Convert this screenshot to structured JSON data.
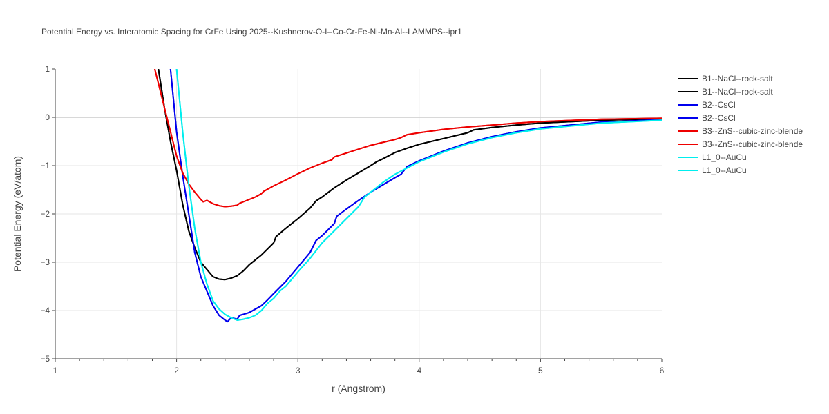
{
  "chart_data": {
    "type": "line",
    "title": "Potential Energy vs. Interatomic Spacing for CrFe Using 2025--Kushnerov-O-I--Co-Cr-Fe-Ni-Mn-Al--LAMMPS--ipr1",
    "xlabel": "r (Angstrom)",
    "ylabel": "Potential Energy (eV/atom)",
    "xlim": [
      1,
      6
    ],
    "ylim": [
      -5,
      1
    ],
    "xticks": [
      1,
      2,
      3,
      4,
      5,
      6
    ],
    "yticks": [
      1,
      0,
      -1,
      -2,
      -3,
      -4,
      -5
    ],
    "ytick_labels": [
      "1",
      "0",
      "−1",
      "−2",
      "−3",
      "−4",
      "−5"
    ],
    "grid": true,
    "legend_position": "right",
    "series": [
      {
        "name": "B1--NaCl--rock-salt",
        "color": "#000000",
        "x": [
          1.85,
          1.9,
          1.95,
          2.0,
          2.05,
          2.1,
          2.15,
          2.2,
          2.25,
          2.3,
          2.35,
          2.4,
          2.45,
          2.5,
          2.55,
          2.6,
          2.7,
          2.8,
          2.82,
          2.9,
          3.0,
          3.1,
          3.15,
          3.2,
          3.3,
          3.4,
          3.5,
          3.6,
          3.65,
          3.7,
          3.8,
          3.9,
          4.0,
          4.2,
          4.4,
          4.45,
          4.6,
          4.8,
          5.0,
          5.5,
          6.0
        ],
        "y": [
          1.0,
          0.2,
          -0.5,
          -1.1,
          -1.8,
          -2.35,
          -2.7,
          -3.0,
          -3.15,
          -3.3,
          -3.35,
          -3.36,
          -3.33,
          -3.28,
          -3.18,
          -3.05,
          -2.85,
          -2.6,
          -2.47,
          -2.3,
          -2.1,
          -1.88,
          -1.73,
          -1.65,
          -1.46,
          -1.3,
          -1.15,
          -1.0,
          -0.92,
          -0.86,
          -0.73,
          -0.64,
          -0.56,
          -0.44,
          -0.32,
          -0.26,
          -0.21,
          -0.16,
          -0.12,
          -0.06,
          -0.03
        ]
      },
      {
        "name": "B1--NaCl--rock-salt",
        "color": "#000000",
        "x": [
          1.85,
          1.9,
          1.95,
          2.0,
          2.05,
          2.1,
          2.15,
          2.2,
          2.25,
          2.3,
          2.35,
          2.4,
          2.45,
          2.5,
          2.55,
          2.6,
          2.7,
          2.8,
          2.82,
          2.9,
          3.0,
          3.1,
          3.15,
          3.2,
          3.3,
          3.4,
          3.5,
          3.6,
          3.65,
          3.7,
          3.8,
          3.9,
          4.0,
          4.2,
          4.4,
          4.45,
          4.6,
          4.8,
          5.0,
          5.5,
          6.0
        ],
        "y": [
          1.0,
          0.2,
          -0.5,
          -1.1,
          -1.8,
          -2.35,
          -2.7,
          -3.0,
          -3.15,
          -3.3,
          -3.35,
          -3.36,
          -3.33,
          -3.28,
          -3.18,
          -3.05,
          -2.85,
          -2.6,
          -2.47,
          -2.3,
          -2.1,
          -1.88,
          -1.73,
          -1.65,
          -1.46,
          -1.3,
          -1.15,
          -1.0,
          -0.92,
          -0.86,
          -0.73,
          -0.64,
          -0.56,
          -0.44,
          -0.32,
          -0.26,
          -0.21,
          -0.16,
          -0.12,
          -0.06,
          -0.03
        ]
      },
      {
        "name": "B2--CsCl",
        "color": "#0000ee",
        "x": [
          1.95,
          2.0,
          2.05,
          2.1,
          2.15,
          2.2,
          2.25,
          2.3,
          2.35,
          2.4,
          2.42,
          2.45,
          2.5,
          2.52,
          2.55,
          2.6,
          2.7,
          2.75,
          2.8,
          2.9,
          3.0,
          3.1,
          3.15,
          3.2,
          3.3,
          3.32,
          3.4,
          3.5,
          3.6,
          3.7,
          3.8,
          3.85,
          3.9,
          4.0,
          4.2,
          4.4,
          4.6,
          4.8,
          5.0,
          5.5,
          6.0
        ],
        "y": [
          1.0,
          -0.3,
          -1.2,
          -2.0,
          -2.8,
          -3.3,
          -3.6,
          -3.9,
          -4.1,
          -4.2,
          -4.23,
          -4.15,
          -4.18,
          -4.1,
          -4.08,
          -4.04,
          -3.9,
          -3.78,
          -3.65,
          -3.4,
          -3.1,
          -2.8,
          -2.55,
          -2.45,
          -2.2,
          -2.05,
          -1.9,
          -1.72,
          -1.55,
          -1.4,
          -1.25,
          -1.18,
          -1.02,
          -0.9,
          -0.7,
          -0.53,
          -0.4,
          -0.3,
          -0.22,
          -0.1,
          -0.05
        ]
      },
      {
        "name": "B2--CsCl",
        "color": "#0000ee",
        "x": [
          1.95,
          2.0,
          2.05,
          2.1,
          2.15,
          2.2,
          2.25,
          2.3,
          2.35,
          2.4,
          2.42,
          2.45,
          2.5,
          2.52,
          2.55,
          2.6,
          2.7,
          2.75,
          2.8,
          2.9,
          3.0,
          3.1,
          3.15,
          3.2,
          3.3,
          3.32,
          3.4,
          3.5,
          3.6,
          3.7,
          3.8,
          3.85,
          3.9,
          4.0,
          4.2,
          4.4,
          4.6,
          4.8,
          5.0,
          5.5,
          6.0
        ],
        "y": [
          1.0,
          -0.3,
          -1.2,
          -2.0,
          -2.8,
          -3.3,
          -3.6,
          -3.9,
          -4.1,
          -4.2,
          -4.23,
          -4.15,
          -4.18,
          -4.1,
          -4.08,
          -4.04,
          -3.9,
          -3.78,
          -3.65,
          -3.4,
          -3.1,
          -2.8,
          -2.55,
          -2.45,
          -2.2,
          -2.05,
          -1.9,
          -1.72,
          -1.55,
          -1.4,
          -1.25,
          -1.18,
          -1.02,
          -0.9,
          -0.7,
          -0.53,
          -0.4,
          -0.3,
          -0.22,
          -0.1,
          -0.05
        ]
      },
      {
        "name": "B3--ZnS--cubic-zinc-blende",
        "color": "#ee0000",
        "x": [
          1.82,
          1.85,
          1.9,
          1.95,
          2.0,
          2.05,
          2.1,
          2.15,
          2.2,
          2.22,
          2.25,
          2.3,
          2.35,
          2.4,
          2.45,
          2.5,
          2.52,
          2.55,
          2.6,
          2.65,
          2.7,
          2.72,
          2.8,
          2.9,
          3.0,
          3.1,
          3.2,
          3.28,
          3.3,
          3.4,
          3.5,
          3.6,
          3.7,
          3.8,
          3.85,
          3.9,
          4.0,
          4.2,
          4.4,
          4.6,
          4.8,
          5.0,
          5.5,
          6.0
        ],
        "y": [
          1.0,
          0.7,
          0.2,
          -0.3,
          -0.8,
          -1.15,
          -1.38,
          -1.55,
          -1.7,
          -1.75,
          -1.72,
          -1.79,
          -1.83,
          -1.85,
          -1.84,
          -1.82,
          -1.78,
          -1.75,
          -1.7,
          -1.65,
          -1.58,
          -1.53,
          -1.42,
          -1.3,
          -1.17,
          -1.05,
          -0.95,
          -0.88,
          -0.82,
          -0.74,
          -0.66,
          -0.58,
          -0.52,
          -0.46,
          -0.42,
          -0.36,
          -0.32,
          -0.25,
          -0.2,
          -0.16,
          -0.12,
          -0.09,
          -0.04,
          -0.02
        ]
      },
      {
        "name": "B3--ZnS--cubic-zinc-blende",
        "color": "#ee0000",
        "x": [
          1.82,
          1.85,
          1.9,
          1.95,
          2.0,
          2.05,
          2.1,
          2.15,
          2.2,
          2.22,
          2.25,
          2.3,
          2.35,
          2.4,
          2.45,
          2.5,
          2.52,
          2.55,
          2.6,
          2.65,
          2.7,
          2.72,
          2.8,
          2.9,
          3.0,
          3.1,
          3.2,
          3.28,
          3.3,
          3.4,
          3.5,
          3.6,
          3.7,
          3.8,
          3.85,
          3.9,
          4.0,
          4.2,
          4.4,
          4.6,
          4.8,
          5.0,
          5.5,
          6.0
        ],
        "y": [
          1.0,
          0.7,
          0.2,
          -0.3,
          -0.8,
          -1.15,
          -1.38,
          -1.55,
          -1.7,
          -1.75,
          -1.72,
          -1.79,
          -1.83,
          -1.85,
          -1.84,
          -1.82,
          -1.78,
          -1.75,
          -1.7,
          -1.65,
          -1.58,
          -1.53,
          -1.42,
          -1.3,
          -1.17,
          -1.05,
          -0.95,
          -0.88,
          -0.82,
          -0.74,
          -0.66,
          -0.58,
          -0.52,
          -0.46,
          -0.42,
          -0.36,
          -0.32,
          -0.25,
          -0.2,
          -0.16,
          -0.12,
          -0.09,
          -0.04,
          -0.02
        ]
      },
      {
        "name": "L1_0--AuCu",
        "color": "#00eeee",
        "x": [
          2.0,
          2.05,
          2.1,
          2.15,
          2.2,
          2.25,
          2.3,
          2.35,
          2.4,
          2.45,
          2.5,
          2.55,
          2.6,
          2.65,
          2.7,
          2.75,
          2.8,
          2.85,
          2.9,
          3.0,
          3.1,
          3.2,
          3.3,
          3.4,
          3.5,
          3.55,
          3.6,
          3.7,
          3.8,
          3.9,
          4.0,
          4.2,
          4.4,
          4.6,
          4.8,
          5.0,
          5.5,
          6.0
        ],
        "y": [
          1.0,
          -0.3,
          -1.4,
          -2.3,
          -3.0,
          -3.45,
          -3.8,
          -3.97,
          -4.08,
          -4.15,
          -4.2,
          -4.18,
          -4.15,
          -4.1,
          -4.0,
          -3.85,
          -3.75,
          -3.6,
          -3.5,
          -3.2,
          -2.92,
          -2.6,
          -2.35,
          -2.1,
          -1.85,
          -1.65,
          -1.55,
          -1.35,
          -1.18,
          -1.05,
          -0.92,
          -0.72,
          -0.55,
          -0.42,
          -0.32,
          -0.24,
          -0.12,
          -0.06
        ]
      },
      {
        "name": "L1_0--AuCu",
        "color": "#00eeee",
        "x": [
          2.0,
          2.05,
          2.1,
          2.15,
          2.2,
          2.25,
          2.3,
          2.35,
          2.4,
          2.45,
          2.5,
          2.55,
          2.6,
          2.65,
          2.7,
          2.75,
          2.8,
          2.85,
          2.9,
          3.0,
          3.1,
          3.2,
          3.3,
          3.4,
          3.5,
          3.55,
          3.6,
          3.7,
          3.8,
          3.9,
          4.0,
          4.2,
          4.4,
          4.6,
          4.8,
          5.0,
          5.5,
          6.0
        ],
        "y": [
          1.0,
          -0.3,
          -1.4,
          -2.3,
          -3.0,
          -3.45,
          -3.8,
          -3.97,
          -4.08,
          -4.15,
          -4.2,
          -4.18,
          -4.15,
          -4.1,
          -4.0,
          -3.85,
          -3.75,
          -3.6,
          -3.5,
          -3.2,
          -2.92,
          -2.6,
          -2.35,
          -2.1,
          -1.85,
          -1.65,
          -1.55,
          -1.35,
          -1.18,
          -1.05,
          -0.92,
          -0.72,
          -0.55,
          -0.42,
          -0.32,
          -0.24,
          -0.12,
          -0.06
        ]
      }
    ]
  }
}
